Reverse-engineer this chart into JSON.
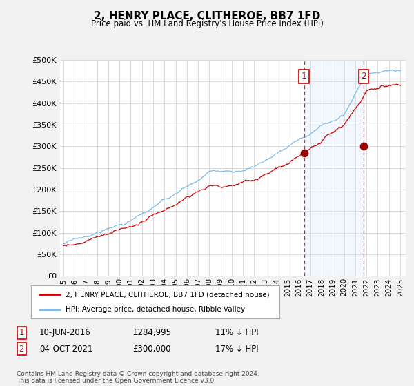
{
  "title": "2, HENRY PLACE, CLITHEROE, BB7 1FD",
  "subtitle": "Price paid vs. HM Land Registry's House Price Index (HPI)",
  "ylim": [
    0,
    500000
  ],
  "yticks": [
    0,
    50000,
    100000,
    150000,
    200000,
    250000,
    300000,
    350000,
    400000,
    450000,
    500000
  ],
  "hpi_color": "#7ab8e8",
  "price_color": "#cc0000",
  "vline_color": "#cc0000",
  "fill_color": "#d8eaf8",
  "annotation1": {
    "label": "1",
    "date_str": "10-JUN-2016",
    "price": "£284,995",
    "pct": "11% ↓ HPI",
    "year": 2016.458
  },
  "annotation2": {
    "label": "2",
    "date_str": "04-OCT-2021",
    "price": "£300,000",
    "pct": "17% ↓ HPI",
    "year": 2021.75
  },
  "sale_price1": 284995,
  "sale_price2": 300000,
  "legend1": "2, HENRY PLACE, CLITHEROE, BB7 1FD (detached house)",
  "legend2": "HPI: Average price, detached house, Ribble Valley",
  "footer": "Contains HM Land Registry data © Crown copyright and database right 2024.\nThis data is licensed under the Open Government Licence v3.0.",
  "background_color": "#f2f2f2",
  "plot_background": "#ffffff",
  "grid_color": "#cccccc"
}
